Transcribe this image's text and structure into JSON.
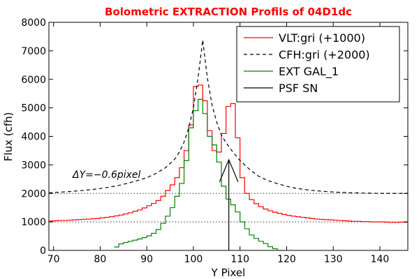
{
  "chart_data": {
    "type": "line",
    "title": "Bolometric EXTRACTION Profils of 04D1dc",
    "title_color": "#ff0000",
    "xlabel": "Y Pixel",
    "ylabel": "Flux (cfh)",
    "xlim": [
      69,
      146
    ],
    "ylim": [
      0,
      8000
    ],
    "xticks": [
      70,
      80,
      90,
      100,
      110,
      120,
      130,
      140
    ],
    "yticks": [
      0,
      1000,
      2000,
      3000,
      4000,
      5000,
      6000,
      7000,
      8000
    ],
    "grid": false,
    "legend_position": "top-right",
    "reference_lines": [
      {
        "name": "baseline-1000",
        "y": 1000,
        "style": "dotted",
        "color": "#000000"
      },
      {
        "name": "baseline-2000",
        "y": 2000,
        "style": "dotted",
        "color": "#000000"
      }
    ],
    "annotation": {
      "text": "ΔY=−0.6pixel",
      "anchor_x": 74,
      "anchor_y": 2500
    },
    "psf_marker": {
      "x": 107.6,
      "y_bottom": 0,
      "y_top": 3180,
      "arrow_left_x": 105.6,
      "arrow_right_x": 109.6,
      "arrow_y": 2400
    },
    "series": [
      {
        "name": "VLT:gri (+1000)",
        "color": "#ff0000",
        "style": "step",
        "x": [
          69,
          70,
          71,
          72,
          73,
          74,
          75,
          76,
          77,
          78,
          79,
          80,
          81,
          82,
          83,
          84,
          85,
          86,
          87,
          88,
          89,
          90,
          91,
          92,
          93,
          94,
          95,
          96,
          97,
          98,
          99,
          100,
          101,
          102,
          103,
          104,
          105,
          106,
          107,
          108,
          109,
          110,
          111,
          112,
          113,
          114,
          115,
          116,
          117,
          118,
          119,
          120,
          121,
          122,
          123,
          124,
          125,
          126,
          127,
          128,
          129,
          130,
          131,
          132,
          133,
          134,
          135,
          136,
          137,
          138,
          139,
          140,
          141,
          142,
          143,
          144,
          145,
          146
        ],
        "values": [
          1030,
          1040,
          1050,
          1050,
          1060,
          1070,
          1080,
          1090,
          1100,
          1110,
          1120,
          1140,
          1160,
          1180,
          1210,
          1240,
          1280,
          1320,
          1370,
          1420,
          1490,
          1570,
          1650,
          1750,
          1900,
          2100,
          2300,
          2550,
          2900,
          3500,
          4400,
          5750,
          5800,
          5250,
          4200,
          3500,
          3450,
          4100,
          5050,
          5150,
          3950,
          2550,
          2000,
          1780,
          1640,
          1530,
          1450,
          1390,
          1340,
          1300,
          1260,
          1230,
          1200,
          1180,
          1160,
          1140,
          1120,
          1100,
          1090,
          1080,
          1070,
          1060,
          1050,
          1040,
          1030,
          1020,
          1020,
          1010,
          1010,
          1000,
          1000,
          1000,
          990,
          980,
          980,
          990,
          990,
          980
        ]
      },
      {
        "name": "CFH:gri (+2000)",
        "color": "#000000",
        "style": "dashed",
        "x": [
          69,
          70,
          72,
          74,
          76,
          78,
          80,
          82,
          84,
          86,
          88,
          90,
          92,
          94,
          96,
          97,
          98,
          99,
          100,
          101,
          101.5,
          102,
          102.5,
          103,
          104,
          105,
          106,
          107,
          108,
          109,
          110,
          112,
          114,
          116,
          118,
          120,
          122,
          125,
          128,
          131,
          134,
          137,
          140,
          143,
          146
        ],
        "values": [
          2020,
          2030,
          2050,
          2070,
          2100,
          2130,
          2170,
          2220,
          2280,
          2360,
          2450,
          2550,
          2700,
          2900,
          3200,
          3450,
          3800,
          4300,
          5000,
          6050,
          6700,
          7380,
          6700,
          6050,
          5100,
          4500,
          4050,
          3780,
          3550,
          3350,
          3150,
          2850,
          2600,
          2450,
          2340,
          2250,
          2180,
          2110,
          2070,
          2040,
          2020,
          2010,
          2000,
          2000,
          2000
        ]
      },
      {
        "name": "EXT GAL_1",
        "color": "#008000",
        "style": "step",
        "x": [
          83,
          84,
          85,
          86,
          87,
          88,
          89,
          90,
          91,
          92,
          93,
          94,
          95,
          96,
          97,
          98,
          99,
          100,
          101,
          102,
          103,
          104,
          105,
          106,
          107,
          108,
          109,
          110,
          111,
          112,
          113,
          114,
          115,
          116,
          117,
          118
        ],
        "values": [
          120,
          230,
          280,
          320,
          360,
          400,
          450,
          510,
          600,
          730,
          950,
          1200,
          1500,
          1900,
          2350,
          3150,
          4300,
          4900,
          5300,
          4800,
          4000,
          3700,
          3100,
          2250,
          1800,
          1600,
          1350,
          1000,
          760,
          540,
          420,
          320,
          240,
          130,
          60,
          0
        ]
      },
      {
        "name": "PSF SN",
        "color": "#000000",
        "style": "solid",
        "x": [],
        "values": []
      }
    ]
  }
}
